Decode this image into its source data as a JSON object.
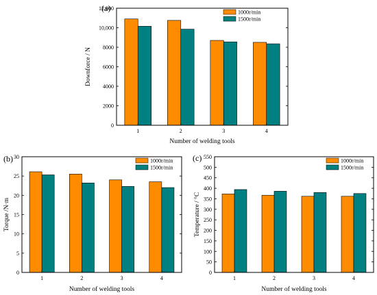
{
  "colors": {
    "series1": "#FF8C00",
    "series2": "#008080"
  },
  "chart_data": [
    {
      "panel": "(a)",
      "type": "bar",
      "categories": [
        "1",
        "2",
        "3",
        "4"
      ],
      "series": [
        {
          "name": "1000r/min",
          "values": [
            10900,
            10750,
            8700,
            8500
          ]
        },
        {
          "name": "1500r/min",
          "values": [
            10150,
            9850,
            8550,
            8350
          ]
        }
      ],
      "xlabel": "Number of welding tools",
      "ylabel": "Downforce / N",
      "ylim": [
        0,
        12000
      ],
      "yticks": [
        "0",
        "2000",
        "4000",
        "6000",
        "8000",
        "10,000",
        "12,000"
      ],
      "legend": "top-right",
      "grid": false
    },
    {
      "panel": "(b)",
      "type": "bar",
      "categories": [
        "1",
        "2",
        "3",
        "4"
      ],
      "series": [
        {
          "name": "1000r/min",
          "values": [
            26.1,
            25.5,
            24.0,
            23.5
          ]
        },
        {
          "name": "1500r/min",
          "values": [
            25.3,
            23.2,
            22.3,
            22.0
          ]
        }
      ],
      "xlabel": "Number of welding tools",
      "ylabel": "Torque /N·m",
      "ylim": [
        0,
        30
      ],
      "yticks": [
        "0",
        "5",
        "10",
        "15",
        "20",
        "25",
        "30"
      ],
      "legend": "top-right",
      "grid": false
    },
    {
      "panel": "(c)",
      "type": "bar",
      "categories": [
        "1",
        "2",
        "3",
        "4"
      ],
      "series": [
        {
          "name": "1000r/min",
          "values": [
            373,
            367,
            362,
            362
          ]
        },
        {
          "name": "1500r/min",
          "values": [
            394,
            386,
            380,
            375
          ]
        }
      ],
      "xlabel": "Number of welding tools",
      "ylabel": "Temperature / °C",
      "ylim": [
        0,
        550
      ],
      "yticks": [
        "0",
        "50",
        "100",
        "150",
        "200",
        "250",
        "300",
        "350",
        "400",
        "450",
        "500",
        "550"
      ],
      "legend": "top-right",
      "grid": false
    }
  ]
}
